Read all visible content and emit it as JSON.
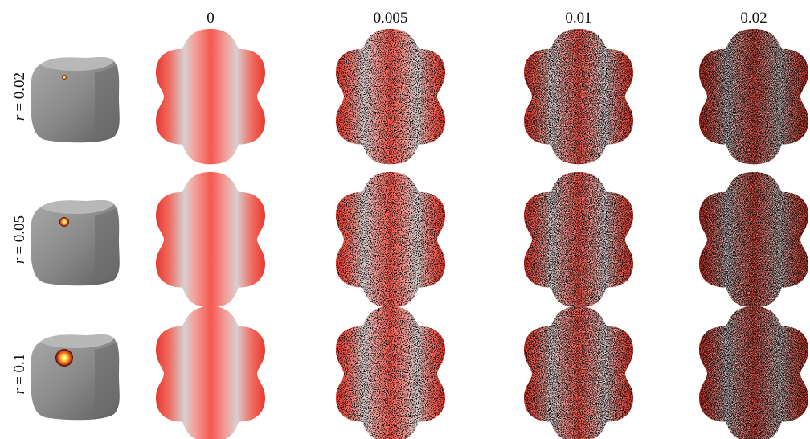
{
  "figure": {
    "columns": [
      "0",
      "0.005",
      "0.01",
      "0.02"
    ],
    "rows": [
      {
        "variable": "r",
        "value": "= 0.02"
      },
      {
        "variable": "r",
        "value": "= 0.05"
      },
      {
        "variable": "r",
        "value": "= 0.1"
      }
    ]
  }
}
